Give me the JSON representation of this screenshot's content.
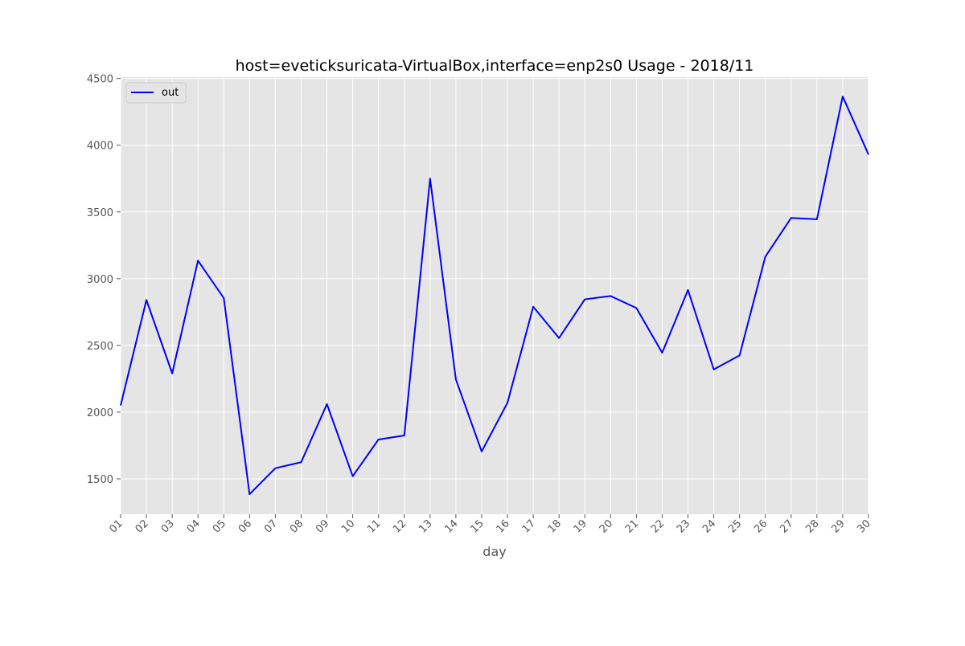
{
  "chart_data": {
    "type": "line",
    "title": "host=eveticksuricata-VirtualBox,interface=enp2s0 Usage - 2018/11",
    "xlabel": "day",
    "ylabel": "",
    "categories": [
      "01",
      "02",
      "03",
      "04",
      "05",
      "06",
      "07",
      "08",
      "09",
      "10",
      "11",
      "12",
      "13",
      "14",
      "15",
      "16",
      "17",
      "18",
      "19",
      "20",
      "21",
      "22",
      "23",
      "24",
      "25",
      "26",
      "27",
      "28",
      "29",
      "30"
    ],
    "series": [
      {
        "name": "out",
        "color": "#0000ff",
        "values": [
          2050,
          2840,
          2290,
          3135,
          2855,
          1385,
          1580,
          1625,
          2060,
          1520,
          1795,
          1825,
          3750,
          2245,
          1705,
          2070,
          2790,
          2555,
          2845,
          2870,
          2780,
          2445,
          2915,
          2320,
          2425,
          3165,
          3455,
          3445,
          4365,
          3930
        ]
      }
    ],
    "yticks": [
      1500,
      2000,
      2500,
      3000,
      3500,
      4000,
      4500
    ],
    "ylim": [
      1235,
      4510
    ],
    "grid": true,
    "legend_position": "top-left",
    "plot_background": "#e5e5e5",
    "grid_color": "#ffffff"
  }
}
